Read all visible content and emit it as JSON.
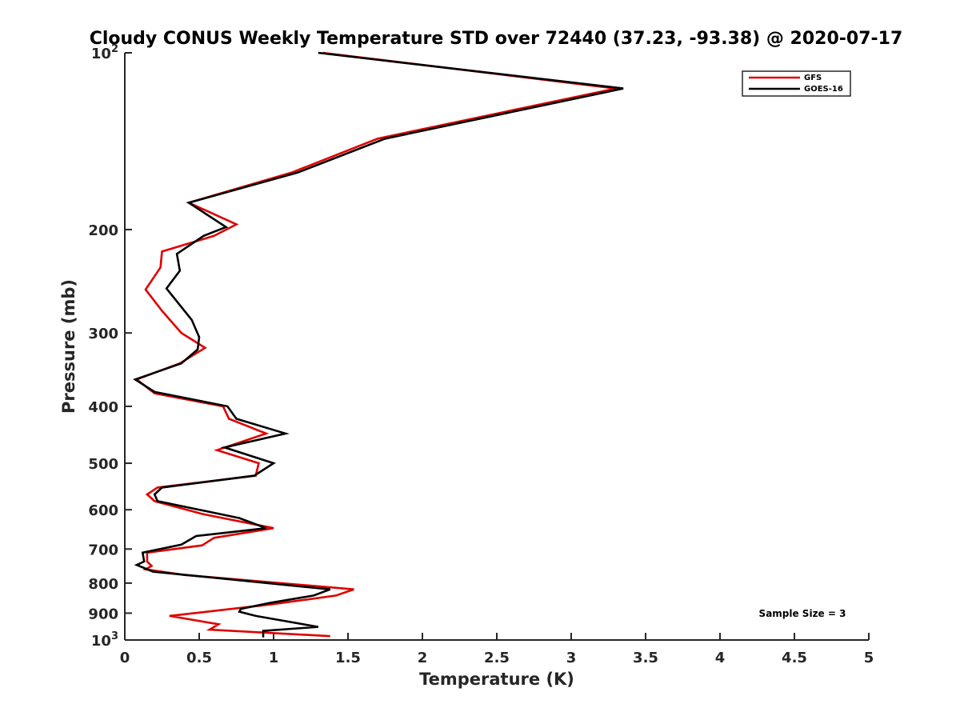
{
  "chart_data": {
    "type": "line",
    "title": "Cloudy CONUS Weekly Temperature STD over 72440 (37.23, -93.38) @ 2020-07-17",
    "xlabel": "Temperature (K)",
    "ylabel": "Pressure (mb)",
    "xlim": [
      0,
      5
    ],
    "ylim": [
      100,
      1000
    ],
    "y_scale": "log",
    "y_reversed": true,
    "grid": false,
    "legend_position": "top-right",
    "x_ticks": [
      "0",
      "0.5",
      "1",
      "1.5",
      "2",
      "2.5",
      "3",
      "3.5",
      "4",
      "4.5",
      "5"
    ],
    "y_ticks": [
      {
        "value": 100,
        "base": "10",
        "exp": "2"
      },
      {
        "value": 200,
        "label": "200"
      },
      {
        "value": 300,
        "label": "300"
      },
      {
        "value": 400,
        "label": "400"
      },
      {
        "value": 500,
        "label": "500"
      },
      {
        "value": 600,
        "label": "600"
      },
      {
        "value": 700,
        "label": "700"
      },
      {
        "value": 800,
        "label": "800"
      },
      {
        "value": 900,
        "label": "900"
      },
      {
        "value": 1000,
        "base": "10",
        "exp": "3"
      }
    ],
    "annotation": "Sample Size = 3",
    "series": [
      {
        "name": "GFS",
        "color": "#e00000",
        "points": [
          [
            1.33,
            100
          ],
          [
            3.3,
            115
          ],
          [
            1.7,
            140
          ],
          [
            1.12,
            160
          ],
          [
            0.43,
            180
          ],
          [
            0.75,
            196
          ],
          [
            0.6,
            205
          ],
          [
            0.25,
            218
          ],
          [
            0.24,
            232
          ],
          [
            0.14,
            253
          ],
          [
            0.25,
            275
          ],
          [
            0.38,
            300
          ],
          [
            0.54,
            318
          ],
          [
            0.37,
            338
          ],
          [
            0.08,
            360
          ],
          [
            0.2,
            380
          ],
          [
            0.66,
            400
          ],
          [
            0.7,
            420
          ],
          [
            0.95,
            445
          ],
          [
            0.62,
            475
          ],
          [
            0.9,
            500
          ],
          [
            0.88,
            525
          ],
          [
            0.22,
            550
          ],
          [
            0.15,
            565
          ],
          [
            0.2,
            580
          ],
          [
            0.52,
            610
          ],
          [
            1.0,
            645
          ],
          [
            0.6,
            670
          ],
          [
            0.52,
            690
          ],
          [
            0.15,
            710
          ],
          [
            0.15,
            735
          ],
          [
            0.18,
            748
          ],
          [
            0.14,
            758
          ],
          [
            0.4,
            775
          ],
          [
            1.54,
            820
          ],
          [
            1.42,
            840
          ],
          [
            0.98,
            870
          ],
          [
            0.3,
            910
          ],
          [
            0.63,
            940
          ],
          [
            0.57,
            960
          ],
          [
            1.38,
            985
          ]
        ]
      },
      {
        "name": "GOES-16",
        "color": "#000000",
        "points": [
          [
            1.3,
            100
          ],
          [
            3.35,
            115
          ],
          [
            1.75,
            140
          ],
          [
            1.16,
            160
          ],
          [
            0.43,
            180
          ],
          [
            0.68,
            198
          ],
          [
            0.53,
            205
          ],
          [
            0.35,
            220
          ],
          [
            0.37,
            235
          ],
          [
            0.28,
            252
          ],
          [
            0.45,
            285
          ],
          [
            0.5,
            305
          ],
          [
            0.49,
            320
          ],
          [
            0.38,
            338
          ],
          [
            0.07,
            360
          ],
          [
            0.2,
            378
          ],
          [
            0.69,
            400
          ],
          [
            0.75,
            420
          ],
          [
            1.08,
            445
          ],
          [
            0.67,
            470
          ],
          [
            1.0,
            500
          ],
          [
            0.87,
            525
          ],
          [
            0.25,
            550
          ],
          [
            0.2,
            565
          ],
          [
            0.22,
            580
          ],
          [
            0.77,
            620
          ],
          [
            0.95,
            645
          ],
          [
            0.48,
            665
          ],
          [
            0.38,
            688
          ],
          [
            0.12,
            710
          ],
          [
            0.13,
            735
          ],
          [
            0.08,
            745
          ],
          [
            0.19,
            765
          ],
          [
            1.38,
            820
          ],
          [
            1.27,
            840
          ],
          [
            0.97,
            865
          ],
          [
            0.78,
            885
          ],
          [
            0.77,
            895
          ],
          [
            0.88,
            910
          ],
          [
            1.3,
            950
          ],
          [
            0.93,
            965
          ],
          [
            0.93,
            990
          ]
        ]
      }
    ]
  }
}
